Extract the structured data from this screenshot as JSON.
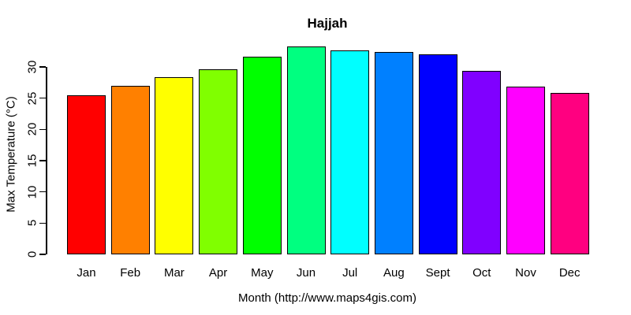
{
  "chart_data": {
    "type": "bar",
    "title": "Hajjah",
    "xlabel": "Month (http://www.maps4gis.com)",
    "ylabel": "Max Temperature (°C)",
    "categories": [
      "Jan",
      "Feb",
      "Mar",
      "Apr",
      "May",
      "Jun",
      "Jul",
      "Aug",
      "Sept",
      "Oct",
      "Nov",
      "Dec"
    ],
    "values": [
      25.4,
      27.0,
      28.3,
      29.6,
      31.6,
      33.3,
      32.7,
      32.4,
      32.0,
      29.4,
      26.9,
      25.9
    ],
    "bar_colors": [
      "#FF0000",
      "#FF8000",
      "#FFFF00",
      "#80FF00",
      "#00FF00",
      "#00FF80",
      "#00FFFF",
      "#0080FF",
      "#0000FF",
      "#8000FF",
      "#FF00FF",
      "#FF0080"
    ],
    "bar_border_color": "#000000",
    "yticks": [
      0,
      5,
      10,
      15,
      20,
      25,
      30
    ],
    "ylim": [
      0,
      33.3
    ],
    "grid": false,
    "legend": false,
    "background": "#FFFFFF",
    "text_color": "#000000"
  }
}
